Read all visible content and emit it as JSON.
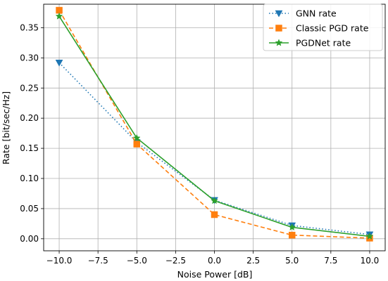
{
  "chart_data": {
    "type": "line",
    "title": "",
    "xlabel": "Noise Power [dB]",
    "ylabel": "Rate [bit/sec/Hz]",
    "x": [
      -10,
      -5,
      0,
      5,
      10
    ],
    "xlim": [
      -11,
      11
    ],
    "ylim": [
      -0.02,
      0.389
    ],
    "xticks": [
      -10,
      -7.5,
      -5,
      -2.5,
      0,
      2.5,
      5,
      7.5,
      10
    ],
    "xtick_labels": [
      "−10.0",
      "−7.5",
      "−5.0",
      "−2.5",
      "0.0",
      "2.5",
      "5.0",
      "7.5",
      "10.0"
    ],
    "yticks": [
      0,
      0.05,
      0.1,
      0.15,
      0.2,
      0.25,
      0.3,
      0.35
    ],
    "ytick_labels": [
      "0.00",
      "0.05",
      "0.10",
      "0.15",
      "0.20",
      "0.25",
      "0.30",
      "0.35"
    ],
    "grid": true,
    "legend_position": "top-right",
    "series": [
      {
        "name": "GNN rate",
        "values": [
          0.292,
          0.16,
          0.064,
          0.022,
          0.007
        ],
        "color": "#1f77b4",
        "linestyle": "dotted",
        "marker": "triangle-down"
      },
      {
        "name": "Classic PGD rate",
        "values": [
          0.379,
          0.157,
          0.04,
          0.006,
          0.001
        ],
        "color": "#ff7f0e",
        "linestyle": "dashed",
        "marker": "square"
      },
      {
        "name": "PGDNet rate",
        "values": [
          0.369,
          0.167,
          0.063,
          0.019,
          0.004
        ],
        "color": "#2ca02c",
        "linestyle": "solid",
        "marker": "star"
      }
    ]
  }
}
